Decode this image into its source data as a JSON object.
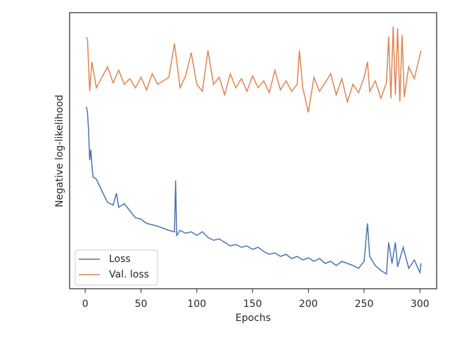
{
  "chart_data": {
    "type": "line",
    "x_label": "Epochs",
    "y_label": "Negative log-likelihood",
    "xlim": [
      -14,
      315
    ],
    "xticks": [
      0,
      50,
      100,
      150,
      200,
      250,
      300
    ],
    "ylim": [
      0,
      393
    ],
    "yticks": [],
    "grid": false,
    "legend": "lower left",
    "series": [
      {
        "name": "Loss",
        "color": "#4c72b0",
        "x": [
          1,
          2,
          3,
          4,
          5,
          6,
          7,
          10,
          15,
          20,
          25,
          28,
          30,
          35,
          40,
          45,
          50,
          55,
          60,
          65,
          70,
          75,
          80,
          81,
          82,
          85,
          90,
          95,
          100,
          105,
          110,
          115,
          120,
          125,
          130,
          135,
          140,
          145,
          150,
          155,
          160,
          165,
          170,
          175,
          180,
          185,
          190,
          195,
          200,
          205,
          210,
          215,
          220,
          225,
          230,
          235,
          240,
          245,
          250,
          253,
          255,
          260,
          265,
          270,
          272,
          275,
          278,
          280,
          285,
          290,
          295,
          300,
          301
        ],
        "values": [
          259,
          251,
          226,
          183,
          198,
          176,
          159,
          156,
          139,
          123,
          119,
          136,
          116,
          121,
          111,
          101,
          99,
          93,
          91,
          89,
          86,
          83,
          81,
          154,
          76,
          83,
          79,
          81,
          76,
          81,
          73,
          69,
          71,
          66,
          61,
          63,
          59,
          61,
          56,
          59,
          53,
          49,
          51,
          46,
          49,
          43,
          46,
          41,
          44,
          39,
          43,
          36,
          39,
          33,
          39,
          36,
          33,
          29,
          39,
          93,
          46,
          33,
          26,
          21,
          66,
          36,
          66,
          31,
          59,
          29,
          41,
          23,
          36
        ]
      },
      {
        "name": "Val. loss",
        "color": "#dd8452",
        "x": [
          1,
          2,
          4,
          6,
          10,
          15,
          20,
          25,
          30,
          35,
          40,
          45,
          50,
          55,
          60,
          65,
          70,
          75,
          80,
          85,
          90,
          95,
          100,
          105,
          110,
          115,
          120,
          125,
          130,
          135,
          140,
          145,
          150,
          155,
          160,
          165,
          170,
          175,
          180,
          185,
          190,
          192,
          195,
          200,
          205,
          210,
          215,
          220,
          225,
          230,
          235,
          240,
          245,
          250,
          253,
          255,
          260,
          265,
          270,
          272,
          274,
          276,
          278,
          280,
          282,
          284,
          286,
          290,
          295,
          301
        ],
        "values": [
          358,
          355,
          281,
          323,
          286,
          301,
          316,
          293,
          311,
          291,
          299,
          286,
          301,
          283,
          306,
          291,
          296,
          301,
          349,
          286,
          303,
          336,
          291,
          281,
          339,
          291,
          301,
          276,
          306,
          286,
          299,
          281,
          303,
          286,
          296,
          279,
          311,
          283,
          296,
          281,
          291,
          339,
          286,
          251,
          301,
          281,
          293,
          306,
          276,
          299,
          266,
          291,
          279,
          301,
          323,
          281,
          296,
          271,
          293,
          359,
          271,
          373,
          276,
          371,
          266,
          361,
          273,
          316,
          299,
          339
        ]
      }
    ]
  }
}
